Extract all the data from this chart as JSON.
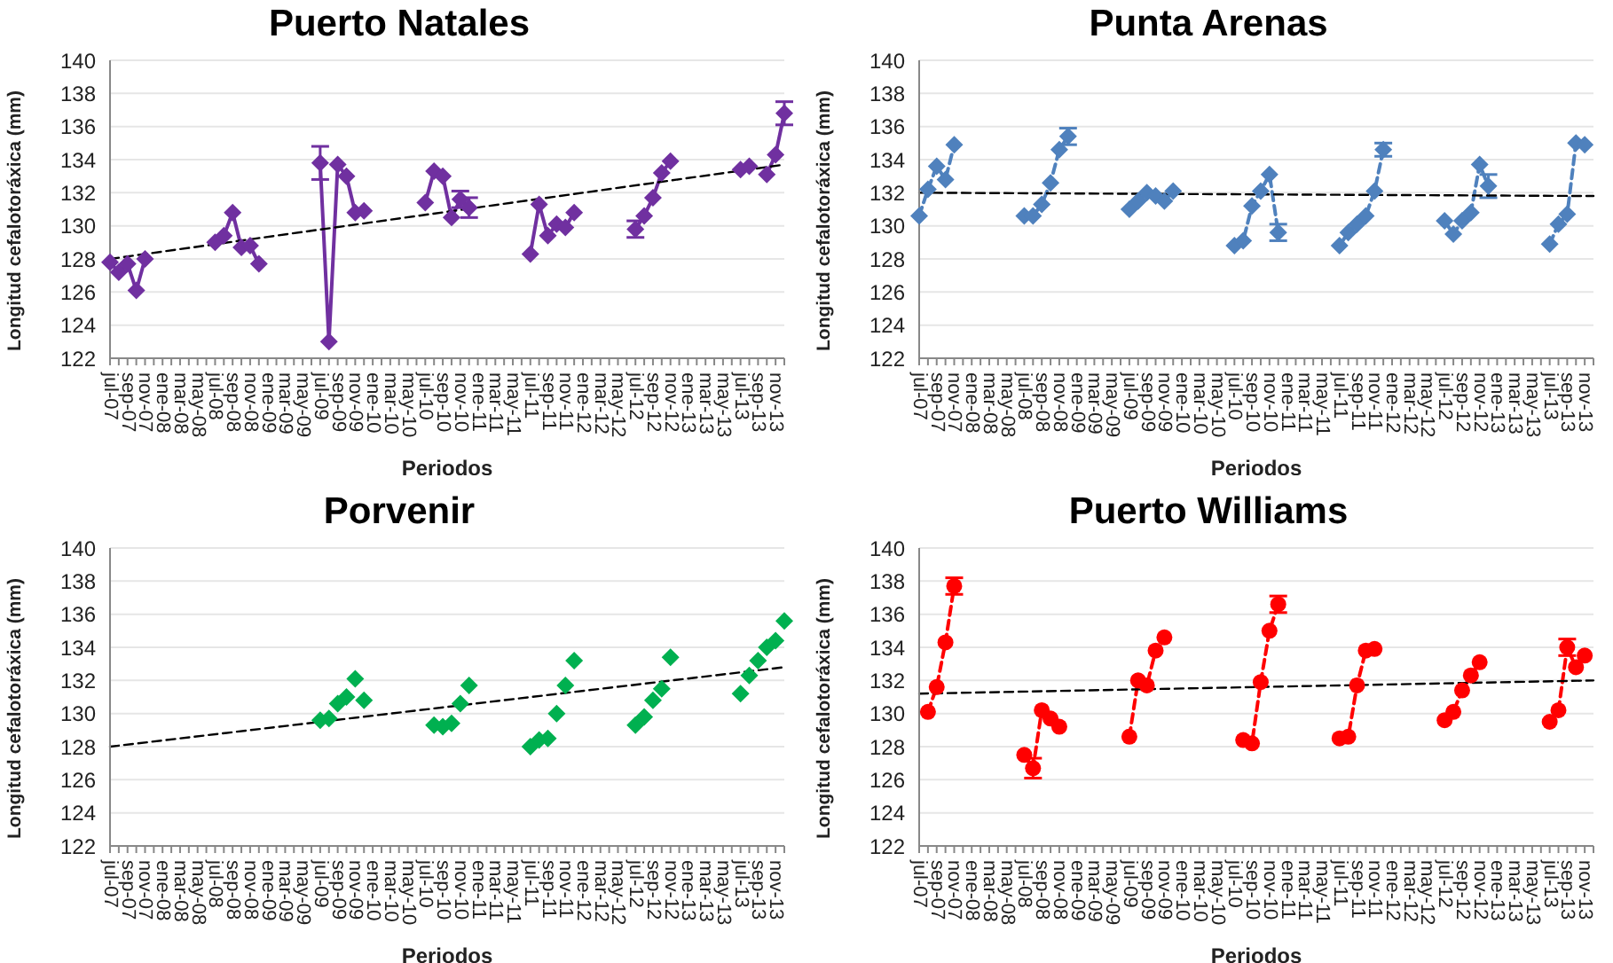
{
  "chart_data": [
    {
      "type": "line",
      "title": "Puerto Natales",
      "xlabel": "Periodos",
      "ylabel": "Longitud cefalotoráxica (mm)",
      "grid": "y",
      "ylim": [
        122,
        140
      ],
      "yticks": [
        122,
        124,
        126,
        128,
        130,
        132,
        134,
        136,
        138,
        140
      ],
      "categories": [
        "jul-07",
        null,
        "sep-07",
        null,
        "nov-07",
        null,
        "ene-08",
        null,
        "mar-08",
        null,
        "may-08",
        null,
        "jul-08",
        null,
        "sep-08",
        null,
        "nov-08",
        null,
        "ene-09",
        null,
        "mar-09",
        null,
        "may-09",
        null,
        "jul-09",
        null,
        "sep-09",
        null,
        "nov-09",
        null,
        "ene-10",
        null,
        "mar-10",
        null,
        "may-10",
        null,
        "jul-10",
        null,
        "sep-10",
        null,
        "nov-10",
        null,
        "ene-11",
        null,
        "mar-11",
        null,
        "may-11",
        null,
        "jul-11",
        null,
        "sep-11",
        null,
        "nov-11",
        null,
        "ene-12",
        null,
        "mar-12",
        null,
        "may-12",
        null,
        "jul-12",
        null,
        "sep-12",
        null,
        "nov-12",
        null,
        "ene-13",
        null,
        "mar-13",
        null,
        "may-13",
        null,
        "jul-13",
        null,
        "sep-13",
        null,
        "nov-13",
        null
      ],
      "series": [
        {
          "type": "line",
          "color": "#7030a0",
          "marker": "diamond",
          "line_style": "solid",
          "values": [
            127.8,
            127.2,
            127.7,
            126.1,
            128.0,
            null,
            null,
            null,
            null,
            null,
            null,
            null,
            129.0,
            129.4,
            130.8,
            128.7,
            128.8,
            127.7,
            null,
            null,
            null,
            null,
            null,
            null,
            133.8,
            123.0,
            133.7,
            133.0,
            130.8,
            130.9,
            null,
            null,
            null,
            null,
            null,
            null,
            131.4,
            133.3,
            133.0,
            130.5,
            131.6,
            131.1,
            null,
            null,
            null,
            null,
            null,
            null,
            128.3,
            131.3,
            129.4,
            130.1,
            129.9,
            130.8,
            null,
            null,
            null,
            null,
            null,
            null,
            129.8,
            130.6,
            131.7,
            133.2,
            133.9,
            null,
            null,
            null,
            null,
            null,
            null,
            null,
            133.4,
            133.6,
            null,
            133.1,
            134.3,
            136.8
          ],
          "errors": [
            null,
            null,
            null,
            null,
            null,
            null,
            null,
            null,
            null,
            null,
            null,
            null,
            null,
            null,
            null,
            null,
            null,
            null,
            null,
            null,
            null,
            null,
            null,
            null,
            1.0,
            null,
            null,
            null,
            null,
            null,
            null,
            null,
            null,
            null,
            null,
            null,
            null,
            null,
            null,
            null,
            0.5,
            0.6,
            null,
            null,
            null,
            null,
            null,
            null,
            null,
            null,
            null,
            null,
            null,
            null,
            null,
            null,
            null,
            null,
            null,
            null,
            0.5,
            null,
            null,
            null,
            null,
            null,
            null,
            null,
            null,
            null,
            null,
            null,
            null,
            null,
            null,
            null,
            null,
            0.7
          ]
        },
        {
          "type": "line",
          "color": "#000000",
          "marker": "none",
          "line_style": "dashed",
          "values": [
            128.0,
            null,
            null,
            null,
            null,
            null,
            null,
            null,
            null,
            null,
            null,
            null,
            null,
            null,
            null,
            null,
            null,
            null,
            null,
            null,
            null,
            null,
            null,
            null,
            null,
            null,
            null,
            null,
            null,
            null,
            null,
            null,
            null,
            null,
            null,
            null,
            null,
            null,
            null,
            null,
            null,
            null,
            null,
            null,
            null,
            null,
            null,
            null,
            null,
            null,
            null,
            null,
            null,
            null,
            null,
            null,
            null,
            null,
            null,
            null,
            null,
            null,
            null,
            null,
            null,
            null,
            null,
            null,
            null,
            null,
            null,
            null,
            null,
            null,
            null,
            null,
            null,
            133.7
          ]
        }
      ]
    },
    {
      "type": "line",
      "title": "Punta Arenas",
      "xlabel": "Periodos",
      "ylabel": "Longitud cefalotoráxica (mm)",
      "grid": "y",
      "ylim": [
        122,
        140
      ],
      "yticks": [
        122,
        124,
        126,
        128,
        130,
        132,
        134,
        136,
        138,
        140
      ],
      "categories": [
        "jul-07",
        null,
        "sep-07",
        null,
        "nov-07",
        null,
        "ene-08",
        null,
        "mar-08",
        null,
        "may-08",
        null,
        "jul-08",
        null,
        "sep-08",
        null,
        "nov-08",
        null,
        "ene-09",
        null,
        "mar-09",
        null,
        "may-09",
        null,
        "jul-09",
        null,
        "sep-09",
        null,
        "nov-09",
        null,
        "ene-10",
        null,
        "mar-10",
        null,
        "may-10",
        null,
        "jul-10",
        null,
        "sep-10",
        null,
        "nov-10",
        null,
        "ene-11",
        null,
        "mar-11",
        null,
        "may-11",
        null,
        "jul-11",
        null,
        "sep-11",
        null,
        "nov-11",
        null,
        "ene-12",
        null,
        "mar-12",
        null,
        "may-12",
        null,
        "jul-12",
        null,
        "sep-12",
        null,
        "nov-12",
        null,
        "ene-13",
        null,
        "mar-13",
        null,
        "may-13",
        null,
        "jul-13",
        null,
        "sep-13",
        null,
        "nov-13",
        null
      ],
      "series": [
        {
          "type": "line",
          "color": "#4f81bd",
          "marker": "diamond",
          "line_style": "dashed",
          "values": [
            130.6,
            132.2,
            133.6,
            132.8,
            134.9,
            null,
            null,
            null,
            null,
            null,
            null,
            null,
            130.6,
            130.6,
            131.3,
            132.6,
            134.6,
            135.4,
            null,
            null,
            null,
            null,
            null,
            null,
            131.0,
            131.5,
            132.0,
            131.8,
            131.5,
            132.1,
            null,
            null,
            null,
            null,
            null,
            null,
            128.8,
            129.1,
            131.2,
            132.1,
            133.1,
            129.6,
            null,
            null,
            null,
            null,
            null,
            null,
            128.8,
            129.6,
            130.1,
            130.6,
            132.1,
            134.6,
            null,
            null,
            null,
            null,
            null,
            null,
            130.3,
            129.5,
            130.3,
            130.8,
            133.7,
            132.4,
            null,
            null,
            null,
            null,
            null,
            null,
            128.9,
            130.1,
            130.7,
            135.0,
            134.9,
            null
          ],
          "errors": [
            null,
            null,
            null,
            null,
            null,
            null,
            null,
            null,
            null,
            null,
            null,
            null,
            null,
            null,
            null,
            null,
            null,
            0.5,
            null,
            null,
            null,
            null,
            null,
            null,
            null,
            null,
            null,
            null,
            null,
            null,
            null,
            null,
            null,
            null,
            null,
            null,
            null,
            null,
            null,
            null,
            null,
            0.5,
            null,
            null,
            null,
            null,
            null,
            null,
            null,
            null,
            null,
            null,
            null,
            0.4,
            null,
            null,
            null,
            null,
            null,
            null,
            null,
            null,
            null,
            null,
            null,
            0.7,
            null,
            null,
            null,
            null,
            null,
            null,
            null,
            null,
            null,
            null,
            null,
            null
          ]
        },
        {
          "type": "line",
          "color": "#000000",
          "marker": "none",
          "line_style": "dashed",
          "values": [
            132.0,
            null,
            null,
            null,
            null,
            null,
            null,
            null,
            null,
            null,
            null,
            null,
            null,
            null,
            null,
            null,
            null,
            null,
            null,
            null,
            null,
            null,
            null,
            null,
            null,
            null,
            null,
            null,
            null,
            null,
            null,
            null,
            null,
            null,
            null,
            null,
            null,
            null,
            null,
            null,
            null,
            null,
            null,
            null,
            null,
            null,
            null,
            null,
            null,
            null,
            null,
            null,
            null,
            null,
            null,
            null,
            null,
            null,
            null,
            null,
            null,
            null,
            null,
            null,
            null,
            null,
            null,
            null,
            null,
            null,
            null,
            null,
            null,
            null,
            null,
            null,
            null,
            131.8
          ]
        }
      ]
    },
    {
      "type": "line",
      "title": "Porvenir",
      "xlabel": "Periodos",
      "ylabel": "Longitud cefalotoráxica (mm)",
      "grid": "y",
      "ylim": [
        122,
        140
      ],
      "yticks": [
        122,
        124,
        126,
        128,
        130,
        132,
        134,
        136,
        138,
        140
      ],
      "categories": [
        "jul-07",
        null,
        "sep-07",
        null,
        "nov-07",
        null,
        "ene-08",
        null,
        "mar-08",
        null,
        "may-08",
        null,
        "jul-08",
        null,
        "sep-08",
        null,
        "nov-08",
        null,
        "ene-09",
        null,
        "mar-09",
        null,
        "may-09",
        null,
        "jul-09",
        null,
        "sep-09",
        null,
        "nov-09",
        null,
        "ene-10",
        null,
        "mar-10",
        null,
        "may-10",
        null,
        "jul-10",
        null,
        "sep-10",
        null,
        "nov-10",
        null,
        "ene-11",
        null,
        "mar-11",
        null,
        "may-11",
        null,
        "jul-11",
        null,
        "sep-11",
        null,
        "nov-11",
        null,
        "ene-12",
        null,
        "mar-12",
        null,
        "may-12",
        null,
        "jul-12",
        null,
        "sep-12",
        null,
        "nov-12",
        null,
        "ene-13",
        null,
        "mar-13",
        null,
        "may-13",
        null,
        "jul-13",
        null,
        "sep-13",
        null,
        "nov-13",
        null
      ],
      "series": [
        {
          "type": "scatter",
          "color": "#00b050",
          "marker": "diamond",
          "values": [
            null,
            null,
            null,
            null,
            null,
            null,
            null,
            null,
            null,
            null,
            null,
            null,
            null,
            null,
            null,
            null,
            null,
            null,
            null,
            null,
            null,
            null,
            null,
            null,
            129.6,
            129.7,
            130.6,
            131.0,
            132.1,
            130.8,
            null,
            null,
            null,
            null,
            null,
            null,
            null,
            129.3,
            129.2,
            129.4,
            130.6,
            131.7,
            null,
            null,
            null,
            null,
            null,
            null,
            128.0,
            128.4,
            128.5,
            130.0,
            131.7,
            133.2,
            null,
            null,
            null,
            null,
            null,
            null,
            129.3,
            129.8,
            130.8,
            131.5,
            133.4,
            null,
            null,
            null,
            null,
            null,
            null,
            null,
            131.2,
            132.3,
            133.2,
            134.0,
            134.4,
            135.6
          ]
        },
        {
          "type": "line",
          "color": "#000000",
          "marker": "none",
          "line_style": "dashed",
          "values": [
            128.0,
            null,
            null,
            null,
            null,
            null,
            null,
            null,
            null,
            null,
            null,
            null,
            null,
            null,
            null,
            null,
            null,
            null,
            null,
            null,
            null,
            null,
            null,
            null,
            null,
            null,
            null,
            null,
            null,
            null,
            null,
            null,
            null,
            null,
            null,
            null,
            null,
            null,
            null,
            null,
            null,
            null,
            null,
            null,
            null,
            null,
            null,
            null,
            null,
            null,
            null,
            null,
            null,
            null,
            null,
            null,
            null,
            null,
            null,
            null,
            null,
            null,
            null,
            null,
            null,
            null,
            null,
            null,
            null,
            null,
            null,
            null,
            null,
            null,
            null,
            null,
            null,
            132.8
          ]
        }
      ]
    },
    {
      "type": "line",
      "title": "Puerto Williams",
      "xlabel": "Periodos",
      "ylabel": "Longitud cefalotoráxica (mm)",
      "grid": "y",
      "ylim": [
        122,
        140
      ],
      "yticks": [
        122,
        124,
        126,
        128,
        130,
        132,
        134,
        136,
        138,
        140
      ],
      "categories": [
        "jul-07",
        null,
        "sep-07",
        null,
        "nov-07",
        null,
        "ene-08",
        null,
        "mar-08",
        null,
        "may-08",
        null,
        "jul-08",
        null,
        "sep-08",
        null,
        "nov-08",
        null,
        "ene-09",
        null,
        "mar-09",
        null,
        "may-09",
        null,
        "jul-09",
        null,
        "sep-09",
        null,
        "nov-09",
        null,
        "ene-10",
        null,
        "mar-10",
        null,
        "may-10",
        null,
        "jul-10",
        null,
        "sep-10",
        null,
        "nov-10",
        null,
        "ene-11",
        null,
        "mar-11",
        null,
        "may-11",
        null,
        "jul-11",
        null,
        "sep-11",
        null,
        "nov-11",
        null,
        "ene-12",
        null,
        "mar-12",
        null,
        "may-12",
        null,
        "jul-12",
        null,
        "sep-12",
        null,
        "nov-12",
        null,
        "ene-13",
        null,
        "mar-13",
        null,
        "may-13",
        null,
        "jul-13",
        null,
        "sep-13",
        null,
        "nov-13",
        null
      ],
      "series": [
        {
          "type": "line",
          "color": "#ff0000",
          "marker": "circle",
          "line_style": "dashed",
          "values": [
            null,
            130.1,
            131.6,
            134.3,
            137.7,
            null,
            null,
            null,
            null,
            null,
            null,
            null,
            127.5,
            126.7,
            130.2,
            129.7,
            129.2,
            null,
            null,
            null,
            null,
            null,
            null,
            null,
            128.6,
            132.0,
            131.7,
            133.8,
            134.6,
            null,
            null,
            null,
            null,
            null,
            null,
            null,
            null,
            128.4,
            128.2,
            131.9,
            135.0,
            136.6,
            null,
            null,
            null,
            null,
            null,
            null,
            128.5,
            128.6,
            131.7,
            133.8,
            133.9,
            null,
            null,
            null,
            null,
            null,
            null,
            null,
            129.6,
            130.1,
            131.4,
            132.3,
            133.1,
            null,
            null,
            null,
            null,
            null,
            null,
            null,
            129.5,
            130.2,
            134.0,
            132.8,
            133.5,
            null
          ],
          "errors": [
            null,
            null,
            null,
            null,
            0.5,
            null,
            null,
            null,
            null,
            null,
            null,
            null,
            null,
            0.6,
            null,
            null,
            null,
            null,
            null,
            null,
            null,
            null,
            null,
            null,
            null,
            null,
            null,
            null,
            null,
            null,
            null,
            null,
            null,
            null,
            null,
            null,
            null,
            null,
            null,
            null,
            null,
            0.5,
            null,
            null,
            null,
            null,
            null,
            null,
            null,
            null,
            null,
            null,
            null,
            null,
            null,
            null,
            null,
            null,
            null,
            null,
            null,
            null,
            null,
            null,
            null,
            null,
            null,
            null,
            null,
            null,
            null,
            null,
            null,
            null,
            0.5,
            null,
            null,
            null
          ]
        },
        {
          "type": "line",
          "color": "#000000",
          "marker": "none",
          "line_style": "dashed",
          "values": [
            131.2,
            null,
            null,
            null,
            null,
            null,
            null,
            null,
            null,
            null,
            null,
            null,
            null,
            null,
            null,
            null,
            null,
            null,
            null,
            null,
            null,
            null,
            null,
            null,
            null,
            null,
            null,
            null,
            null,
            null,
            null,
            null,
            null,
            null,
            null,
            null,
            null,
            null,
            null,
            null,
            null,
            null,
            null,
            null,
            null,
            null,
            null,
            null,
            null,
            null,
            null,
            null,
            null,
            null,
            null,
            null,
            null,
            null,
            null,
            null,
            null,
            null,
            null,
            null,
            null,
            null,
            null,
            null,
            null,
            null,
            null,
            null,
            null,
            null,
            null,
            null,
            null,
            132.0
          ]
        }
      ]
    }
  ]
}
